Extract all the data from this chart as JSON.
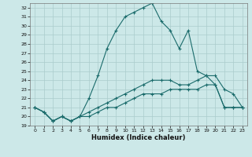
{
  "xlabel": "Humidex (Indice chaleur)",
  "background_color": "#cce8e8",
  "line_color": "#1a6b6b",
  "grid_color": "#aacccc",
  "xlim": [
    -0.5,
    23.5
  ],
  "ylim": [
    19,
    32.5
  ],
  "yticks": [
    19,
    20,
    21,
    22,
    23,
    24,
    25,
    26,
    27,
    28,
    29,
    30,
    31,
    32
  ],
  "xticks": [
    0,
    1,
    2,
    3,
    4,
    5,
    6,
    7,
    8,
    9,
    10,
    11,
    12,
    13,
    14,
    15,
    16,
    17,
    18,
    19,
    20,
    21,
    22,
    23
  ],
  "line1_x": [
    0,
    1,
    2,
    3,
    4,
    5,
    6,
    7,
    8,
    9,
    10,
    11,
    12,
    13,
    14,
    15,
    16,
    17,
    18,
    19,
    20,
    21,
    22,
    23
  ],
  "line1_y": [
    21.0,
    20.5,
    19.5,
    20.0,
    19.5,
    20.0,
    22.0,
    24.5,
    27.5,
    29.5,
    31.0,
    31.5,
    32.0,
    32.5,
    30.5,
    29.5,
    27.5,
    29.5,
    25.0,
    24.5,
    23.5,
    21.0,
    21.0,
    21.0
  ],
  "line2_x": [
    0,
    1,
    2,
    3,
    4,
    5,
    6,
    7,
    8,
    9,
    10,
    11,
    12,
    13,
    14,
    15,
    16,
    17,
    18,
    19,
    20,
    21,
    22,
    23
  ],
  "line2_y": [
    21.0,
    20.5,
    19.5,
    20.0,
    19.5,
    20.0,
    20.5,
    21.0,
    21.5,
    22.0,
    22.5,
    23.0,
    23.5,
    24.0,
    24.0,
    24.0,
    23.5,
    23.5,
    24.0,
    24.5,
    24.5,
    23.0,
    22.5,
    21.0
  ],
  "line3_x": [
    0,
    1,
    2,
    3,
    4,
    5,
    6,
    7,
    8,
    9,
    10,
    11,
    12,
    13,
    14,
    15,
    16,
    17,
    18,
    19,
    20,
    21,
    22,
    23
  ],
  "line3_y": [
    21.0,
    20.5,
    19.5,
    20.0,
    19.5,
    20.0,
    20.0,
    20.5,
    21.0,
    21.0,
    21.5,
    22.0,
    22.5,
    22.5,
    22.5,
    23.0,
    23.0,
    23.0,
    23.0,
    23.5,
    23.5,
    21.0,
    21.0,
    21.0
  ]
}
